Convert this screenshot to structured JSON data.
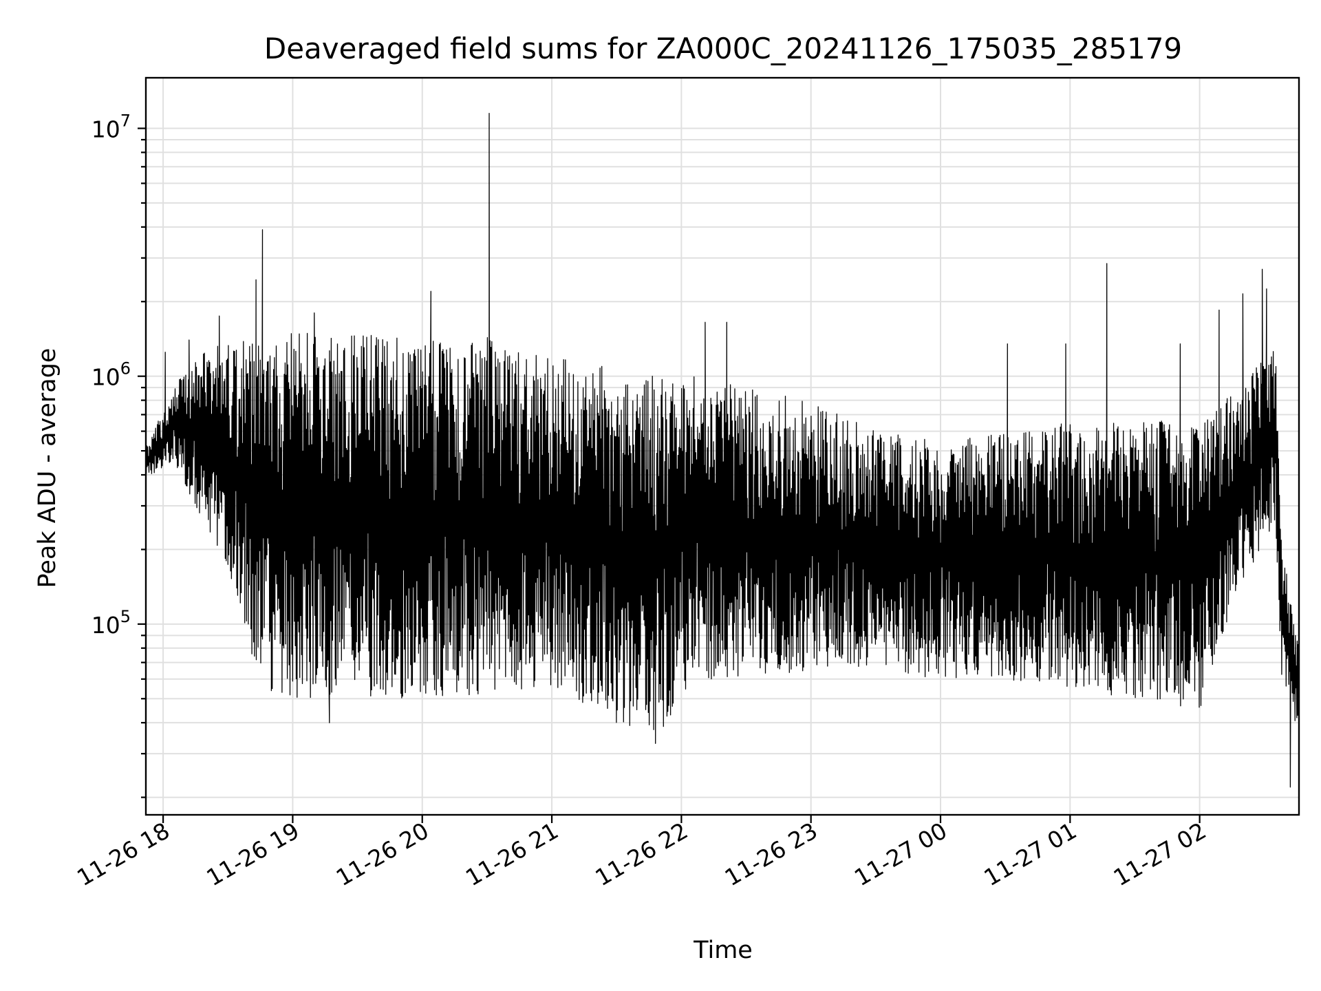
{
  "chart_data": {
    "type": "line",
    "title": "Deaveraged field sums for ZA000C_20241126_175035_285179",
    "xlabel": "Time",
    "ylabel": "Peak ADU - average",
    "yscale": "log",
    "ylim": [
      17000,
      16000000
    ],
    "xlim": [
      "2024-11-26 17:52",
      "2024-11-27 02:46"
    ],
    "grid": true,
    "x_ticks": [
      {
        "t": "2024-11-26 18:00",
        "label": "11-26 18"
      },
      {
        "t": "2024-11-26 19:00",
        "label": "11-26 19"
      },
      {
        "t": "2024-11-26 20:00",
        "label": "11-26 20"
      },
      {
        "t": "2024-11-26 21:00",
        "label": "11-26 21"
      },
      {
        "t": "2024-11-26 22:00",
        "label": "11-26 22"
      },
      {
        "t": "2024-11-26 23:00",
        "label": "11-26 23"
      },
      {
        "t": "2024-11-27 00:00",
        "label": "11-27 00"
      },
      {
        "t": "2024-11-27 01:00",
        "label": "11-27 01"
      },
      {
        "t": "2024-11-27 02:00",
        "label": "11-27 02"
      }
    ],
    "y_ticks": [
      {
        "value": 100000,
        "base": "10",
        "exp": "5"
      },
      {
        "value": 1000000,
        "base": "10",
        "exp": "6"
      },
      {
        "value": 10000000,
        "base": "10",
        "exp": "7"
      }
    ],
    "series": [
      {
        "color": "#000000",
        "envelope": [
          {
            "t": "2024-11-26 17:52",
            "low": 390000,
            "high": 520000
          },
          {
            "t": "2024-11-26 18:05",
            "low": 450000,
            "high": 900000
          },
          {
            "t": "2024-11-26 18:15",
            "low": 300000,
            "high": 1200000
          },
          {
            "t": "2024-11-26 18:30",
            "low": 170000,
            "high": 1400000
          },
          {
            "t": "2024-11-26 18:45",
            "low": 55000,
            "high": 1500000
          },
          {
            "t": "2024-11-26 19:00",
            "low": 50000,
            "high": 1500000
          },
          {
            "t": "2024-11-26 19:30",
            "low": 50000,
            "high": 1500000
          },
          {
            "t": "2024-11-26 20:00",
            "low": 50000,
            "high": 1400000
          },
          {
            "t": "2024-11-26 20:30",
            "low": 50000,
            "high": 1450000
          },
          {
            "t": "2024-11-26 21:00",
            "low": 55000,
            "high": 1200000
          },
          {
            "t": "2024-11-26 21:30",
            "low": 40000,
            "high": 1100000
          },
          {
            "t": "2024-11-26 21:50",
            "low": 36000,
            "high": 1000000
          },
          {
            "t": "2024-11-26 22:05",
            "low": 60000,
            "high": 1000000
          },
          {
            "t": "2024-11-26 22:30",
            "low": 60000,
            "high": 900000
          },
          {
            "t": "2024-11-26 23:00",
            "low": 65000,
            "high": 800000
          },
          {
            "t": "2024-11-26 23:30",
            "low": 65000,
            "high": 600000
          },
          {
            "t": "2024-11-27 00:00",
            "low": 60000,
            "high": 550000
          },
          {
            "t": "2024-11-27 00:30",
            "low": 60000,
            "high": 600000
          },
          {
            "t": "2024-11-27 01:00",
            "low": 55000,
            "high": 650000
          },
          {
            "t": "2024-11-27 01:30",
            "low": 50000,
            "high": 650000
          },
          {
            "t": "2024-11-27 02:00",
            "low": 45000,
            "high": 700000
          },
          {
            "t": "2024-11-27 02:20",
            "low": 150000,
            "high": 900000
          },
          {
            "t": "2024-11-27 02:35",
            "low": 250000,
            "high": 1400000
          },
          {
            "t": "2024-11-27 02:38",
            "low": 60000,
            "high": 200000
          },
          {
            "t": "2024-11-27 02:46",
            "low": 35000,
            "high": 90000
          }
        ],
        "peaks": [
          {
            "t": "2024-11-26 18:01",
            "value": 1250000
          },
          {
            "t": "2024-11-26 18:12",
            "value": 1400000
          },
          {
            "t": "2024-11-26 18:26",
            "value": 1750000
          },
          {
            "t": "2024-11-26 18:43",
            "value": 2450000
          },
          {
            "t": "2024-11-26 18:46",
            "value": 3900000
          },
          {
            "t": "2024-11-26 19:10",
            "value": 1800000
          },
          {
            "t": "2024-11-26 19:17",
            "value": 40000
          },
          {
            "t": "2024-11-26 20:04",
            "value": 2200000
          },
          {
            "t": "2024-11-26 20:31",
            "value": 11500000
          },
          {
            "t": "2024-11-26 21:48",
            "value": 33000
          },
          {
            "t": "2024-11-26 22:11",
            "value": 1650000
          },
          {
            "t": "2024-11-26 22:21",
            "value": 1650000
          },
          {
            "t": "2024-11-27 00:31",
            "value": 1350000
          },
          {
            "t": "2024-11-27 00:58",
            "value": 1350000
          },
          {
            "t": "2024-11-27 01:17",
            "value": 2850000
          },
          {
            "t": "2024-11-27 01:51",
            "value": 1350000
          },
          {
            "t": "2024-11-27 02:09",
            "value": 1850000
          },
          {
            "t": "2024-11-27 02:20",
            "value": 2150000
          },
          {
            "t": "2024-11-27 02:29",
            "value": 2700000
          },
          {
            "t": "2024-11-27 02:31",
            "value": 2250000
          },
          {
            "t": "2024-11-27 02:42",
            "value": 22000
          }
        ]
      }
    ]
  }
}
